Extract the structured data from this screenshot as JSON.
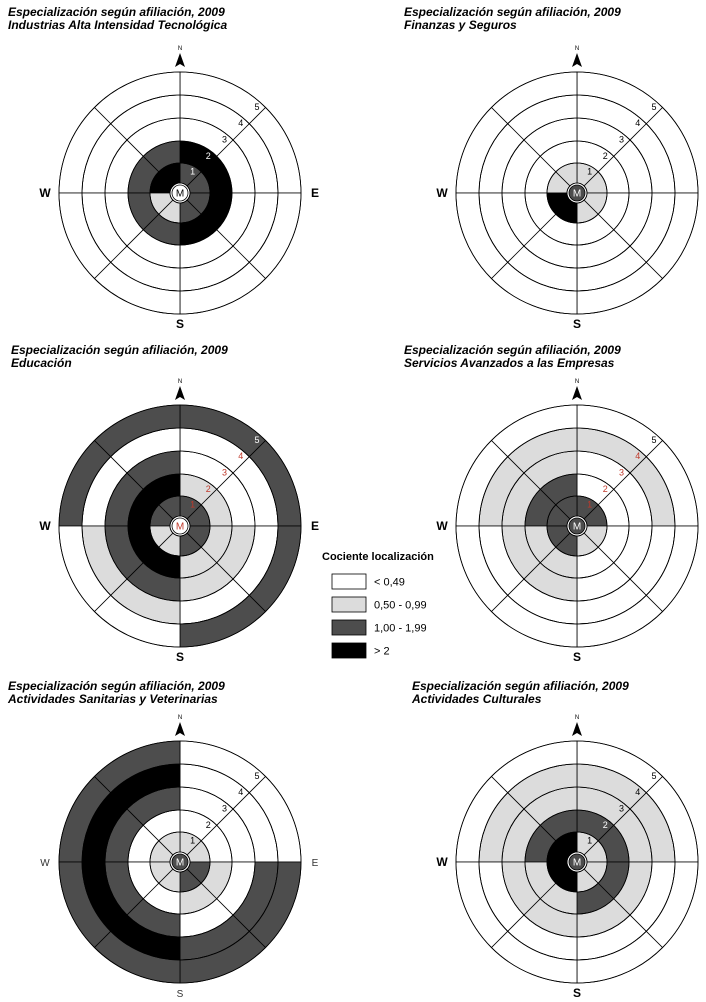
{
  "chart_data": [
    {
      "type": "radial-sector",
      "title": "Especialización según afiliación, 2009",
      "subtitle": "Industrias Alta Intensidad Tecnológica",
      "compass": {
        "N": "N",
        "S": "S",
        "E": "E",
        "W": "W"
      },
      "center_label": "M",
      "ring_labels": [
        "1",
        "2",
        "3",
        "4",
        "5"
      ],
      "cells": {
        "NE": [
          "1,00 - 1,99",
          "> 2",
          "< 0,49",
          "< 0,49",
          "< 0,49"
        ],
        "NW": [
          "> 2",
          "1,00 - 1,99",
          "< 0,49",
          "< 0,49",
          "< 0,49"
        ],
        "SE": [
          "1,00 - 1,99",
          "> 2",
          "< 0,49",
          "< 0,49",
          "< 0,49"
        ],
        "SW": [
          "0,50 - 0,99",
          "1,00 - 1,99",
          "< 0,49",
          "< 0,49",
          "< 0,49"
        ]
      }
    },
    {
      "type": "radial-sector",
      "title": "Especialización según afiliación, 2009",
      "subtitle": "Finanzas y Seguros",
      "compass": {
        "N": "N",
        "S": "S",
        "E": "",
        "W": "W"
      },
      "center_label": "M",
      "ring_labels": [
        "1",
        "2",
        "3",
        "4",
        "5"
      ],
      "cells": {
        "NE": [
          "0,50 - 0,99",
          "< 0,49",
          "< 0,49",
          "< 0,49",
          "< 0,49"
        ],
        "NW": [
          "0,50 - 0,99",
          "< 0,49",
          "< 0,49",
          "< 0,49",
          "< 0,49"
        ],
        "SE": [
          "0,50 - 0,99",
          "< 0,49",
          "< 0,49",
          "< 0,49",
          "< 0,49"
        ],
        "SW": [
          "> 2",
          "< 0,49",
          "< 0,49",
          "< 0,49",
          "< 0,49"
        ]
      }
    },
    {
      "type": "radial-sector",
      "title": "Especialización según afiliación, 2009",
      "subtitle": "Educación",
      "compass": {
        "N": "N",
        "S": "S",
        "E": "E",
        "W": "W"
      },
      "center_label": "M",
      "ring_labels": [
        "1",
        "2",
        "3",
        "4",
        "5"
      ],
      "cells": {
        "NE": [
          "1,00 - 1,99",
          "0,50 - 0,99",
          "< 0,49",
          "< 0,49",
          "1,00 - 1,99"
        ],
        "NW": [
          "1,00 - 1,99",
          "> 2",
          "1,00 - 1,99",
          "< 0,49",
          "1,00 - 1,99"
        ],
        "SE": [
          "1,00 - 1,99",
          "0,50 - 0,99",
          "0,50 - 0,99",
          "< 0,49",
          "1,00 - 1,99"
        ],
        "SW": [
          "0,50 - 0,99",
          "> 2",
          "1,00 - 1,99",
          "0,50 - 0,99",
          "< 0,49"
        ]
      }
    },
    {
      "type": "radial-sector",
      "title": "Especialización según afiliación, 2009",
      "subtitle": "Servicios Avanzados a las Empresas",
      "compass": {
        "N": "N",
        "S": "S",
        "E": "",
        "W": "W"
      },
      "center_label": "M",
      "ring_labels": [
        "1",
        "2",
        "3",
        "4",
        "5"
      ],
      "cells": {
        "NE": [
          "1,00 - 1,99",
          "< 0,49",
          "< 0,49",
          "0,50 - 0,99",
          "< 0,49"
        ],
        "NW": [
          "1,00 - 1,99",
          "1,00 - 1,99",
          "0,50 - 0,99",
          "0,50 - 0,99",
          "< 0,49"
        ],
        "SE": [
          "0,50 - 0,99",
          "< 0,49",
          "< 0,49",
          "< 0,49",
          "< 0,49"
        ],
        "SW": [
          "1,00 - 1,99",
          "0,50 - 0,99",
          "0,50 - 0,99",
          "< 0,49",
          "< 0,49"
        ]
      }
    },
    {
      "type": "radial-sector",
      "title": "Especialización según afiliación, 2009",
      "subtitle": "Actividades Sanitarias y Veterinarias",
      "compass": {
        "N": "N",
        "S": "S",
        "E": "E",
        "W": "W"
      },
      "center_label": "M",
      "ring_labels": [
        "1",
        "2",
        "3",
        "4",
        "5"
      ],
      "cells": {
        "NE": [
          "0,50 - 0,99",
          "< 0,49",
          "< 0,49",
          "< 0,49",
          "< 0,49"
        ],
        "NW": [
          "0,50 - 0,99",
          "< 0,49",
          "1,00 - 1,99",
          "> 2",
          "1,00 - 1,99"
        ],
        "SE": [
          "1,00 - 1,99",
          "0,50 - 0,99",
          "< 0,49",
          "1,00 - 1,99",
          "1,00 - 1,99"
        ],
        "SW": [
          "0,50 - 0,99",
          "< 0,49",
          "1,00 - 1,99",
          "> 2",
          "1,00 - 1,99"
        ]
      }
    },
    {
      "type": "radial-sector",
      "title": "Especialización según afiliación, 2009",
      "subtitle": "Actividades Culturales",
      "compass": {
        "N": "N",
        "S": "S",
        "E": "",
        "W": "W"
      },
      "center_label": "M",
      "ring_labels": [
        "1",
        "2",
        "3",
        "4",
        "5"
      ],
      "cells": {
        "NE": [
          "0,50 - 0,99",
          "1,00 - 1,99",
          "0,50 - 0,99",
          "0,50 - 0,99",
          "< 0,49"
        ],
        "NW": [
          "> 2",
          "1,00 - 1,99",
          "0,50 - 0,99",
          "0,50 - 0,99",
          "< 0,49"
        ],
        "SE": [
          "0,50 - 0,99",
          "1,00 - 1,99",
          "0,50 - 0,99",
          "< 0,49",
          "< 0,49"
        ],
        "SW": [
          "> 2",
          "0,50 - 0,99",
          "0,50 - 0,99",
          "< 0,49",
          "< 0,49"
        ]
      }
    }
  ],
  "legend": {
    "title": "Cociente localización",
    "items": [
      {
        "label": "< 0,49",
        "color": "#ffffff"
      },
      {
        "label": "0,50 - 0,99",
        "color": "#dcdcdc"
      },
      {
        "label": "1,00 - 1,99",
        "color": "#4d4d4d"
      },
      {
        "label": "> 2",
        "color": "#000000"
      }
    ]
  }
}
